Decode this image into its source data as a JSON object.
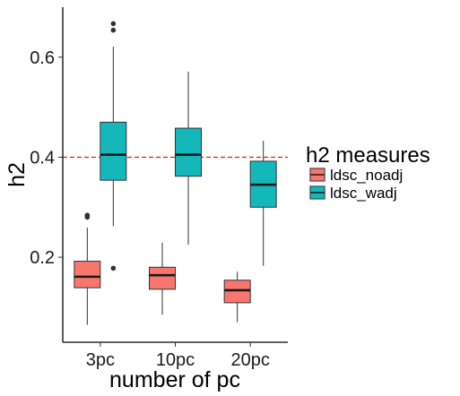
{
  "chart_data": {
    "type": "boxplot",
    "xlabel": "number of pc",
    "ylabel": "h2",
    "categories": [
      "3pc",
      "10pc",
      "20pc"
    ],
    "ylim": [
      0.03,
      0.7
    ],
    "yticks": [
      0.2,
      0.4,
      0.6
    ],
    "ytick_labels": [
      "0.2",
      "0.4",
      "0.6"
    ],
    "grid": false,
    "reference_line": {
      "y": 0.4,
      "style": "dashed",
      "color": "#e41a1c"
    },
    "legend": {
      "title": "h2 measures",
      "position": "right"
    },
    "series": [
      {
        "name": "ldsc_noadj",
        "color": "#f8766d",
        "boxes": [
          {
            "category": "3pc",
            "whisker_low": 0.065,
            "q1": 0.139,
            "median": 0.161,
            "q3": 0.192,
            "whisker_high": 0.259,
            "outliers": [
              0.28,
              0.284
            ]
          },
          {
            "category": "10pc",
            "whisker_low": 0.085,
            "q1": 0.136,
            "median": 0.164,
            "q3": 0.18,
            "whisker_high": 0.229,
            "outliers": []
          },
          {
            "category": "20pc",
            "whisker_low": 0.07,
            "q1": 0.109,
            "median": 0.134,
            "q3": 0.154,
            "whisker_high": 0.171,
            "outliers": []
          }
        ]
      },
      {
        "name": "ldsc_wadj",
        "color": "#14b8bb",
        "boxes": [
          {
            "category": "3pc",
            "whisker_low": 0.262,
            "q1": 0.354,
            "median": 0.405,
            "q3": 0.47,
            "whisker_high": 0.621,
            "outliers": [
              0.178,
              0.654,
              0.667
            ]
          },
          {
            "category": "10pc",
            "whisker_low": 0.225,
            "q1": 0.362,
            "median": 0.405,
            "q3": 0.458,
            "whisker_high": 0.571,
            "outliers": []
          },
          {
            "category": "20pc",
            "whisker_low": 0.183,
            "q1": 0.3,
            "median": 0.345,
            "q3": 0.392,
            "whisker_high": 0.433,
            "outliers": []
          }
        ]
      }
    ]
  }
}
